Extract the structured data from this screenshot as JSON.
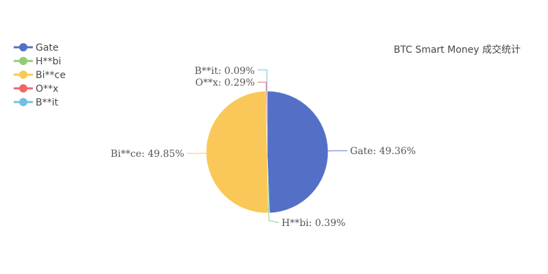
{
  "chart_data": {
    "type": "pie",
    "title": "BTC Smart Money 成交统计",
    "legend_position": "top-left",
    "slices": [
      {
        "name": "Gate",
        "value": 49.36,
        "label": "Gate: 49.36%",
        "color": "#5470c6"
      },
      {
        "name": "H**bi",
        "value": 0.39,
        "label": "H**bi: 0.39%",
        "color": "#91cc75"
      },
      {
        "name": "Bi**ce",
        "value": 49.85,
        "label": "Bi**ce: 49.85%",
        "color": "#fac858"
      },
      {
        "name": "O**x",
        "value": 0.29,
        "label": "O**x: 0.29%",
        "color": "#ee6666"
      },
      {
        "name": "B**it",
        "value": 0.09,
        "label": "B**it: 0.09%",
        "color": "#73c0de"
      }
    ]
  }
}
